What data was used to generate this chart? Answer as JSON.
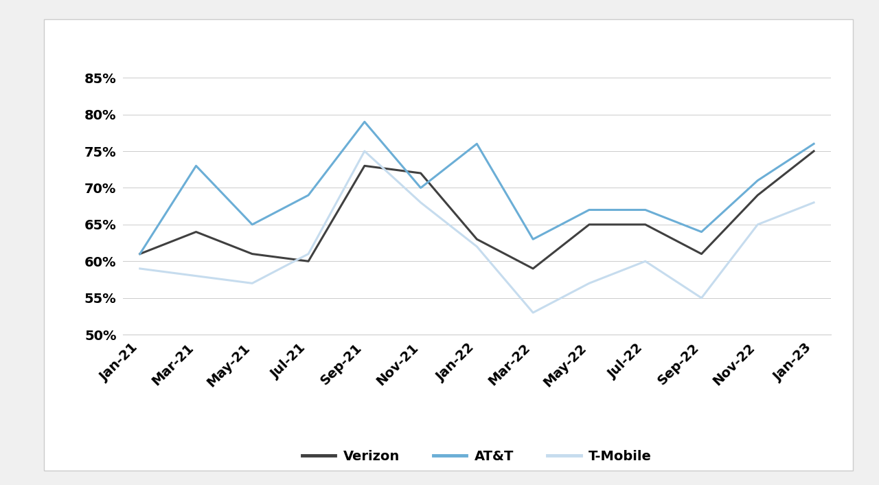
{
  "x_labels": [
    "Jan-21",
    "Mar-21",
    "May-21",
    "Jul-21",
    "Sep-21",
    "Nov-21",
    "Jan-22",
    "Mar-22",
    "May-22",
    "Jul-22",
    "Sep-22",
    "Nov-22",
    "Jan-23"
  ],
  "series": {
    "Verizon": [
      61,
      64,
      61,
      60,
      73,
      72,
      63,
      59,
      65,
      65,
      61,
      69,
      75
    ],
    "AT&T": [
      61,
      73,
      65,
      69,
      79,
      70,
      76,
      63,
      67,
      67,
      64,
      71,
      76
    ],
    "T-Mobile": [
      59,
      58,
      57,
      61,
      75,
      68,
      62,
      53,
      57,
      60,
      55,
      65,
      68
    ]
  },
  "colors": {
    "Verizon": "#404040",
    "AT&T": "#6baed6",
    "T-Mobile": "#c6dcee"
  },
  "line_widths": {
    "Verizon": 2.2,
    "AT&T": 2.2,
    "T-Mobile": 2.2
  },
  "ylim": [
    50,
    87
  ],
  "yticks": [
    50,
    55,
    60,
    65,
    70,
    75,
    80,
    85
  ],
  "outer_bg": "#f0f0f0",
  "card_bg": "#ffffff",
  "grid_color": "#cccccc",
  "border_color": "#cccccc",
  "tick_fontsize": 14,
  "legend_fontsize": 14,
  "tick_fontweight": "bold",
  "legend_ncol": 3
}
